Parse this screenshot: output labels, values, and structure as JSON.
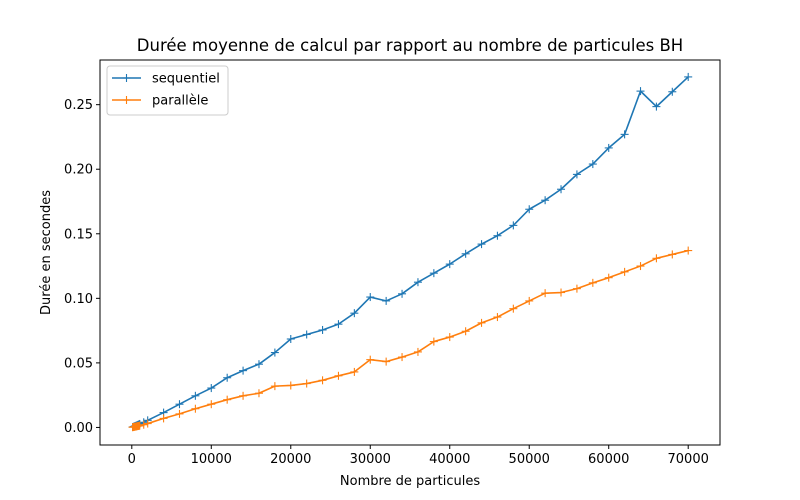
{
  "chart_data": {
    "type": "line",
    "title": "Durée moyenne de calcul par rapport au nombre de particules BH",
    "xlabel": "Nombre de particules",
    "ylabel": "Durée en secondes",
    "xlim": [
      -4000,
      74000
    ],
    "ylim": [
      -0.0136,
      0.2846
    ],
    "xticks": [
      0,
      10000,
      20000,
      30000,
      40000,
      50000,
      60000,
      70000
    ],
    "xtick_labels": [
      "0",
      "10000",
      "20000",
      "30000",
      "40000",
      "50000",
      "60000",
      "70000"
    ],
    "yticks": [
      0.0,
      0.05,
      0.1,
      0.15,
      0.2,
      0.25
    ],
    "ytick_labels": [
      "0.00",
      "0.05",
      "0.10",
      "0.15",
      "0.20",
      "0.25"
    ],
    "grid": false,
    "legend_position": "upper-left",
    "x": [
      100,
      200,
      300,
      400,
      500,
      600,
      700,
      800,
      900,
      1000,
      1500,
      2000,
      4000,
      6000,
      8000,
      10000,
      12000,
      14000,
      16000,
      18000,
      20000,
      22000,
      24000,
      26000,
      28000,
      30000,
      32000,
      34000,
      36000,
      38000,
      40000,
      42000,
      44000,
      46000,
      48000,
      50000,
      52000,
      54000,
      56000,
      58000,
      60000,
      62000,
      64000,
      66000,
      68000,
      70000
    ],
    "series": [
      {
        "name": "sequentiel",
        "color": "#1f77b4",
        "values": [
          0.0003,
          0.0005,
          0.0008,
          0.001,
          0.0013,
          0.0015,
          0.0018,
          0.0021,
          0.0024,
          0.0027,
          0.004,
          0.0055,
          0.0115,
          0.018,
          0.0245,
          0.0305,
          0.0385,
          0.044,
          0.049,
          0.058,
          0.0685,
          0.072,
          0.0755,
          0.08,
          0.0885,
          0.101,
          0.098,
          0.1035,
          0.1125,
          0.1195,
          0.1265,
          0.1345,
          0.142,
          0.1485,
          0.1565,
          0.169,
          0.176,
          0.1845,
          0.196,
          0.204,
          0.2165,
          0.227,
          0.2605,
          0.2485,
          0.26,
          0.2715
        ]
      },
      {
        "name": "parallèle",
        "color": "#ff7f0e",
        "values": [
          0.0002,
          0.0003,
          0.0004,
          0.0006,
          0.0007,
          0.0008,
          0.001,
          0.0011,
          0.0012,
          0.0014,
          0.0021,
          0.003,
          0.007,
          0.0105,
          0.0145,
          0.018,
          0.0215,
          0.0245,
          0.0265,
          0.032,
          0.0325,
          0.034,
          0.0365,
          0.04,
          0.043,
          0.0525,
          0.051,
          0.0545,
          0.0585,
          0.0665,
          0.07,
          0.0745,
          0.081,
          0.0855,
          0.092,
          0.098,
          0.104,
          0.1045,
          0.1075,
          0.112,
          0.116,
          0.1205,
          0.125,
          0.131,
          0.134,
          0.137
        ]
      }
    ]
  }
}
